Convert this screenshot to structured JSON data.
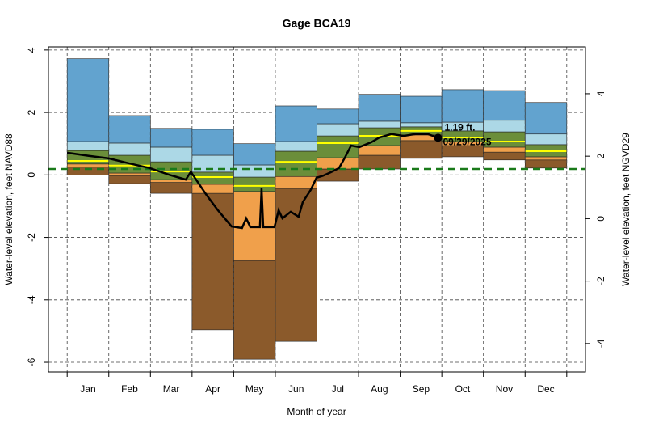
{
  "chart_data": {
    "type": "percentile-bands",
    "title": "Gage BCA19",
    "x_label": "Month of year",
    "y_label": "Water-level elevation, feet NAVD88",
    "y2_label": "Water-level elevation, feet NGVD29",
    "categories": [
      "Jan",
      "Feb",
      "Mar",
      "Apr",
      "May",
      "Jun",
      "Jul",
      "Aug",
      "Sep",
      "Oct",
      "Nov",
      "Dec"
    ],
    "xlim": [
      -0.45,
      12.45
    ],
    "ylim": [
      -6.31,
      4.1
    ],
    "yticks": [
      -6,
      -4,
      -2,
      0,
      2,
      4
    ],
    "y2lim": [
      -4.91,
      5.5
    ],
    "y2ticks": [
      -4,
      -2,
      0,
      2,
      4
    ],
    "grid": true,
    "levels": [
      [
        0.0,
        -0.28,
        -0.59,
        -4.96,
        -5.9,
        -5.33,
        -0.2,
        0.19,
        0.53,
        0.58,
        0.48,
        0.22
      ],
      [
        0.25,
        -0.02,
        -0.24,
        -0.59,
        -2.74,
        -0.43,
        0.19,
        0.63,
        1.1,
        0.94,
        0.73,
        0.48
      ],
      [
        0.35,
        0.06,
        -0.15,
        -0.3,
        -0.53,
        -0.05,
        0.55,
        0.94,
        1.28,
        1.07,
        0.89,
        0.58
      ],
      [
        0.78,
        0.63,
        0.42,
        0.09,
        -0.07,
        0.76,
        1.25,
        1.51,
        1.54,
        1.41,
        1.38,
        0.97
      ],
      [
        1.07,
        1.02,
        0.89,
        0.63,
        0.32,
        1.07,
        1.64,
        1.72,
        1.67,
        1.69,
        1.75,
        1.31
      ],
      [
        3.72,
        1.9,
        1.49,
        1.46,
        1.0,
        2.21,
        2.11,
        2.58,
        2.52,
        2.73,
        2.7,
        2.32
      ]
    ],
    "band_colors": [
      "#8b5a2b",
      "#f0a04b",
      "#6b8e3a",
      "#acd8e6",
      "#62a3cf"
    ],
    "median": {
      "color": "#ffff00",
      "values": [
        0.45,
        0.3,
        0.11,
        -0.07,
        -0.35,
        0.42,
        1.02,
        1.25,
        1.41,
        1.2,
        1.07,
        0.76
      ]
    },
    "reference_line": {
      "value": 0.19,
      "color": "#1a7a1a"
    },
    "current": {
      "color": "#000000",
      "x": [
        0,
        0.52,
        1.0,
        1.49,
        1.98,
        2.46,
        2.85,
        2.97,
        3.33,
        3.62,
        3.95,
        4.2,
        4.3,
        4.4,
        4.63,
        4.67,
        4.71,
        4.98,
        5.08,
        5.17,
        5.37,
        5.56,
        5.66,
        5.85,
        5.99,
        6.14,
        6.34,
        6.53,
        6.67,
        6.82,
        7.02,
        7.31,
        7.5,
        7.79,
        8.08,
        8.37,
        8.66,
        8.91
      ],
      "values": [
        0.71,
        0.61,
        0.53,
        0.37,
        0.22,
        0.0,
        -0.15,
        0.1,
        -0.61,
        -1.13,
        -1.65,
        -1.7,
        -1.39,
        -1.67,
        -1.67,
        -0.43,
        -1.67,
        -1.67,
        -1.13,
        -1.39,
        -1.18,
        -1.34,
        -0.87,
        -0.48,
        -0.09,
        -0.03,
        0.09,
        0.22,
        0.55,
        0.94,
        0.89,
        1.05,
        1.2,
        1.31,
        1.25,
        1.31,
        1.31,
        1.19
      ]
    },
    "annotation": {
      "label": "1.19 ft.",
      "value": 1.19,
      "date": "09/29/2025"
    }
  }
}
